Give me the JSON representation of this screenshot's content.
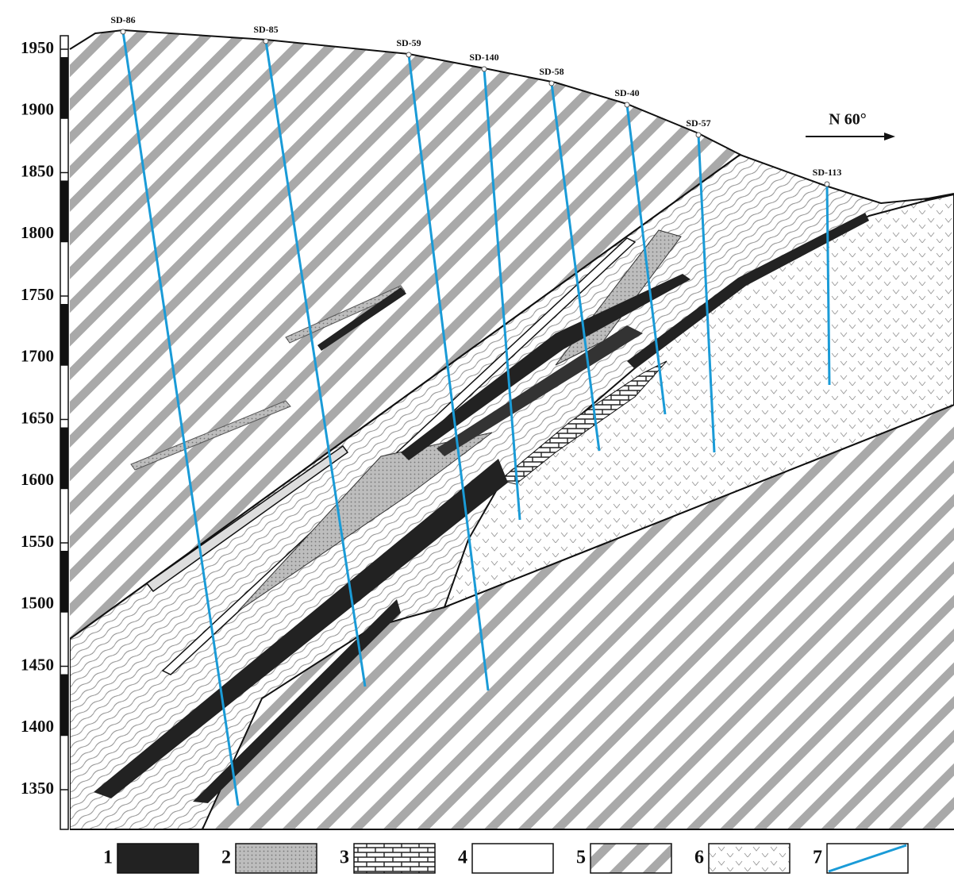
{
  "elevation_labels": [
    1950,
    1900,
    1850,
    1800,
    1750,
    1700,
    1650,
    1600,
    1550,
    1500,
    1450,
    1400,
    1350
  ],
  "boreholes": [
    "SD-86",
    "SD-85",
    "SD-59",
    "SD-140",
    "SD-58",
    "SD-40",
    "SD-57",
    "SD-113"
  ],
  "direction": "N 60°",
  "legend": [
    "1",
    "2",
    "3",
    "4",
    "5",
    "6",
    "7"
  ]
}
